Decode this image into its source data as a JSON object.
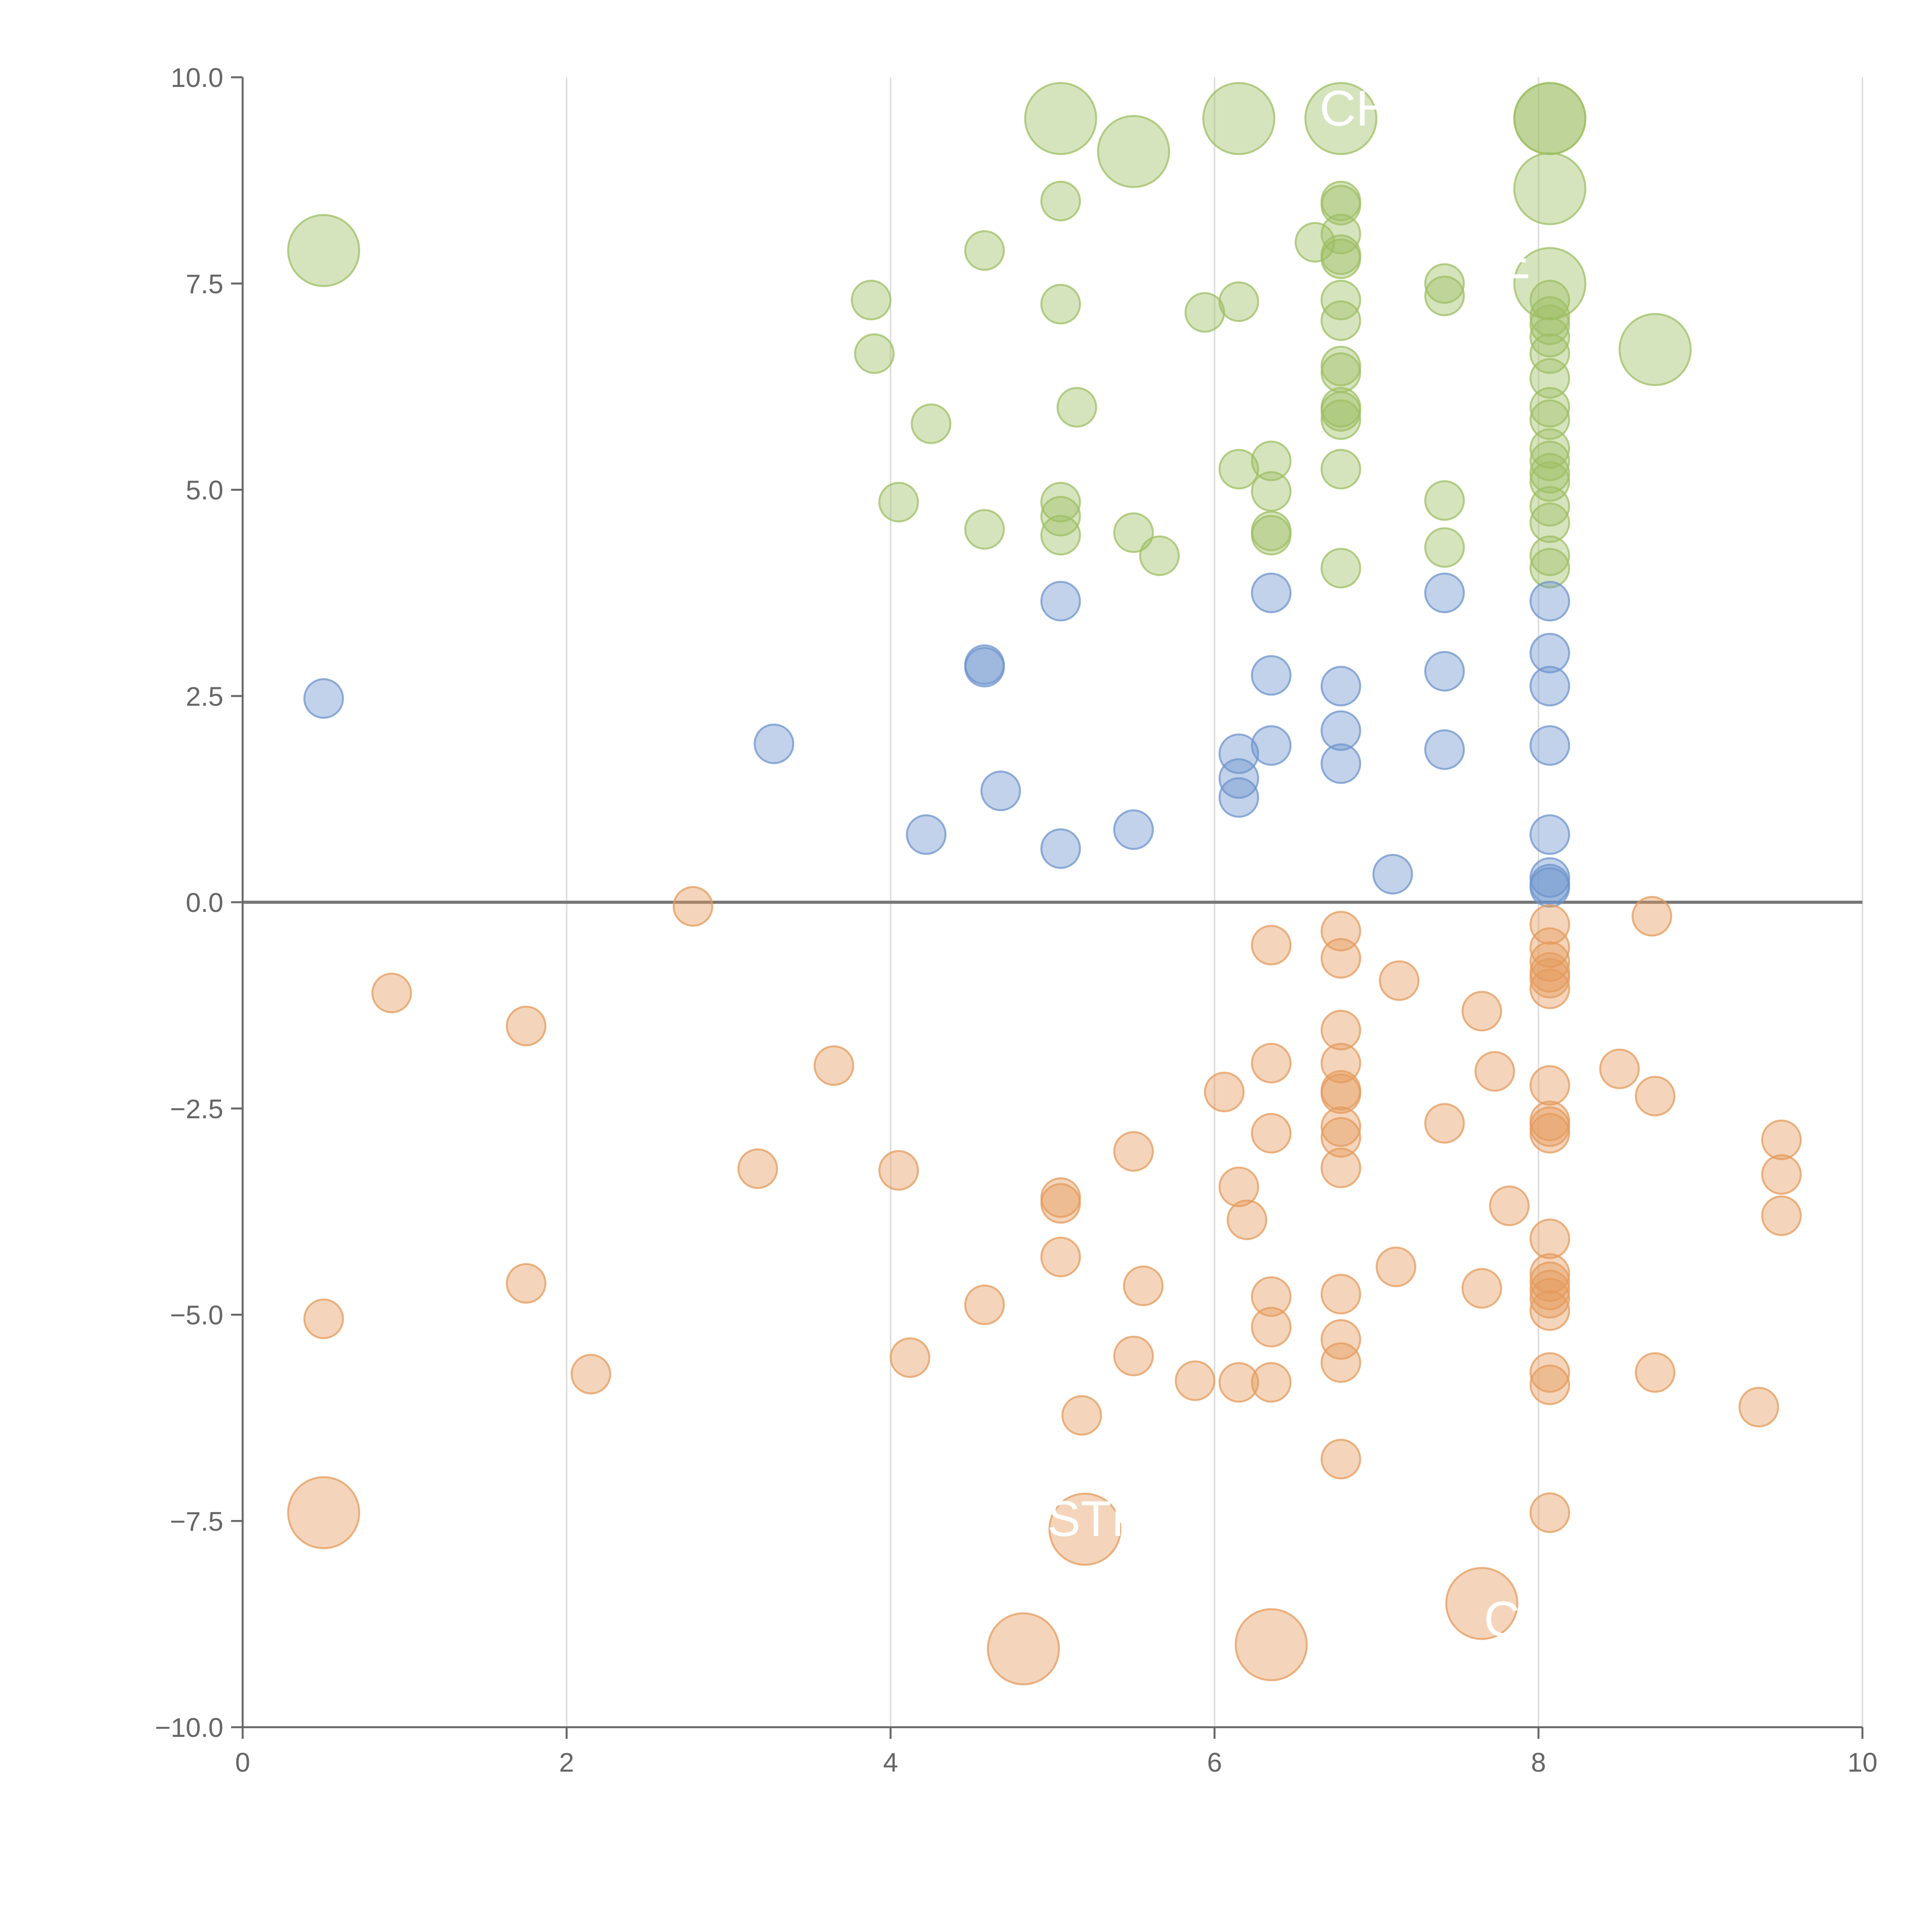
{
  "chart_data": {
    "type": "scatter",
    "title": "",
    "xlabel": "",
    "ylabel": "",
    "xlim": [
      0,
      10
    ],
    "ylim": [
      -10,
      10
    ],
    "x_ticks": [
      "0",
      "2",
      "4",
      "6",
      "8",
      "10"
    ],
    "y_ticks": [
      "10.0",
      "7.5",
      "5.0",
      "2.5",
      "0.0",
      "−2.5",
      "−5.0",
      "−7.5",
      "−10.0"
    ],
    "grid": "vertical",
    "zero_line": 0,
    "colors": {
      "green": "#9ebf63",
      "blue": "#6e94cc",
      "orange": "#e49b5c",
      "axis": "#666666",
      "grid": "#dddddd",
      "zeroline": "#777777"
    },
    "series": [
      {
        "name": "green",
        "color": "#9ebf63",
        "points": [
          [
            5.05,
            9.5
          ],
          [
            5.5,
            9.1
          ],
          [
            6.15,
            9.5
          ],
          [
            6.78,
            9.5
          ],
          [
            8.07,
            9.5
          ],
          [
            8.07,
            8.65
          ],
          [
            8.72,
            6.7
          ],
          [
            0.5,
            7.9
          ],
          [
            5.05,
            8.5
          ],
          [
            4.58,
            7.9
          ],
          [
            3.88,
            7.3
          ],
          [
            3.9,
            6.65
          ],
          [
            4.25,
            5.8
          ],
          [
            4.05,
            4.85
          ],
          [
            4.58,
            4.52
          ],
          [
            5.05,
            7.25
          ],
          [
            5.15,
            6.0
          ],
          [
            5.05,
            4.85
          ],
          [
            5.05,
            4.68
          ],
          [
            5.05,
            4.45
          ],
          [
            5.5,
            4.48
          ],
          [
            5.66,
            4.2
          ],
          [
            5.94,
            7.15
          ],
          [
            6.15,
            7.28
          ],
          [
            6.15,
            5.25
          ],
          [
            6.35,
            5.35
          ],
          [
            6.35,
            4.98
          ],
          [
            6.35,
            4.45
          ],
          [
            6.35,
            4.5
          ],
          [
            6.62,
            8.0
          ],
          [
            6.78,
            8.5
          ],
          [
            6.78,
            8.45
          ],
          [
            6.78,
            8.1
          ],
          [
            6.78,
            7.85
          ],
          [
            6.78,
            7.8
          ],
          [
            6.78,
            7.3
          ],
          [
            6.78,
            7.05
          ],
          [
            6.78,
            6.5
          ],
          [
            6.78,
            6.42
          ],
          [
            6.78,
            6.0
          ],
          [
            6.78,
            5.95
          ],
          [
            6.78,
            5.85
          ],
          [
            6.78,
            5.25
          ],
          [
            6.78,
            4.05
          ],
          [
            7.42,
            7.5
          ],
          [
            7.42,
            7.35
          ],
          [
            7.42,
            4.87
          ],
          [
            7.42,
            4.3
          ],
          [
            8.07,
            9.5
          ],
          [
            8.07,
            7.5
          ],
          [
            8.07,
            7.3
          ],
          [
            8.07,
            7.1
          ],
          [
            8.07,
            7.0
          ],
          [
            8.07,
            6.85
          ],
          [
            8.07,
            6.65
          ],
          [
            8.07,
            6.35
          ],
          [
            8.07,
            6.0
          ],
          [
            8.07,
            5.85
          ],
          [
            8.07,
            5.5
          ],
          [
            8.07,
            5.35
          ],
          [
            8.07,
            5.2
          ],
          [
            8.07,
            5.1
          ],
          [
            8.07,
            4.8
          ],
          [
            8.07,
            4.6
          ],
          [
            8.07,
            4.2
          ],
          [
            8.07,
            4.05
          ]
        ]
      },
      {
        "name": "blue",
        "color": "#6e94cc",
        "points": [
          [
            0.5,
            2.47
          ],
          [
            3.28,
            1.92
          ],
          [
            4.22,
            0.82
          ],
          [
            4.58,
            2.88
          ],
          [
            4.58,
            2.85
          ],
          [
            4.68,
            1.35
          ],
          [
            5.05,
            3.65
          ],
          [
            5.05,
            0.65
          ],
          [
            5.5,
            0.88
          ],
          [
            6.15,
            1.8
          ],
          [
            6.15,
            1.5
          ],
          [
            6.15,
            1.27
          ],
          [
            6.35,
            3.75
          ],
          [
            6.35,
            2.75
          ],
          [
            6.35,
            1.9
          ],
          [
            6.78,
            2.62
          ],
          [
            6.78,
            2.08
          ],
          [
            6.78,
            1.68
          ],
          [
            7.1,
            0.34
          ],
          [
            7.42,
            3.75
          ],
          [
            7.42,
            2.8
          ],
          [
            7.42,
            1.85
          ],
          [
            8.07,
            3.65
          ],
          [
            8.07,
            3.02
          ],
          [
            8.07,
            2.62
          ],
          [
            8.07,
            1.9
          ],
          [
            8.07,
            0.82
          ],
          [
            8.07,
            0.3
          ],
          [
            8.07,
            0.22
          ],
          [
            8.07,
            0.18
          ]
        ]
      },
      {
        "name": "orange",
        "color": "#e49b5c",
        "points": [
          [
            0.5,
            -7.4
          ],
          [
            4.82,
            -9.05
          ],
          [
            5.2,
            -7.6
          ],
          [
            6.35,
            -9.0
          ],
          [
            7.65,
            -8.5
          ],
          [
            2.78,
            -0.05
          ],
          [
            0.92,
            -1.1
          ],
          [
            1.75,
            -1.5
          ],
          [
            3.65,
            -1.98
          ],
          [
            3.18,
            -3.23
          ],
          [
            4.05,
            -3.25
          ],
          [
            1.75,
            -4.62
          ],
          [
            0.5,
            -5.05
          ],
          [
            2.15,
            -5.72
          ],
          [
            4.12,
            -5.52
          ],
          [
            4.58,
            -4.88
          ],
          [
            5.05,
            -3.58
          ],
          [
            5.05,
            -3.65
          ],
          [
            5.05,
            -4.3
          ],
          [
            5.5,
            -3.02
          ],
          [
            5.56,
            -4.65
          ],
          [
            5.5,
            -5.5
          ],
          [
            5.18,
            -6.22
          ],
          [
            5.88,
            -5.8
          ],
          [
            6.06,
            -2.3
          ],
          [
            6.15,
            -3.45
          ],
          [
            6.2,
            -3.85
          ],
          [
            6.15,
            -5.82
          ],
          [
            6.35,
            -0.52
          ],
          [
            6.35,
            -1.95
          ],
          [
            6.35,
            -2.8
          ],
          [
            6.35,
            -4.78
          ],
          [
            6.35,
            -5.15
          ],
          [
            6.35,
            -5.82
          ],
          [
            6.78,
            -0.35
          ],
          [
            6.78,
            -0.68
          ],
          [
            6.78,
            -1.55
          ],
          [
            6.78,
            -1.95
          ],
          [
            6.78,
            -2.28
          ],
          [
            6.78,
            -2.32
          ],
          [
            6.78,
            -2.72
          ],
          [
            6.78,
            -2.85
          ],
          [
            6.78,
            -3.22
          ],
          [
            6.78,
            -4.75
          ],
          [
            6.78,
            -5.3
          ],
          [
            6.78,
            -5.58
          ],
          [
            6.78,
            -6.75
          ],
          [
            7.14,
            -0.95
          ],
          [
            7.12,
            -4.42
          ],
          [
            7.42,
            -2.68
          ],
          [
            7.65,
            -1.32
          ],
          [
            7.65,
            -4.68
          ],
          [
            7.73,
            -2.05
          ],
          [
            7.82,
            -3.68
          ],
          [
            8.07,
            -0.27
          ],
          [
            8.07,
            -0.55
          ],
          [
            8.07,
            -0.72
          ],
          [
            8.07,
            -0.85
          ],
          [
            8.07,
            -0.92
          ],
          [
            8.07,
            -1.05
          ],
          [
            8.07,
            -2.22
          ],
          [
            8.07,
            -2.65
          ],
          [
            8.07,
            -2.72
          ],
          [
            8.07,
            -2.8
          ],
          [
            8.07,
            -4.08
          ],
          [
            8.07,
            -4.5
          ],
          [
            8.07,
            -4.6
          ],
          [
            8.07,
            -4.7
          ],
          [
            8.07,
            -4.8
          ],
          [
            8.07,
            -4.95
          ],
          [
            8.07,
            -5.7
          ],
          [
            8.07,
            -5.85
          ],
          [
            8.07,
            -7.4
          ],
          [
            8.5,
            -2.02
          ],
          [
            8.7,
            -0.17
          ],
          [
            8.72,
            -2.35
          ],
          [
            8.72,
            -5.7
          ],
          [
            9.36,
            -6.12
          ],
          [
            9.5,
            -2.88
          ],
          [
            9.5,
            -3.3
          ],
          [
            9.5,
            -3.8
          ]
        ]
      }
    ],
    "labels": [
      "CH",
      "UE",
      "STP",
      "C"
    ]
  }
}
